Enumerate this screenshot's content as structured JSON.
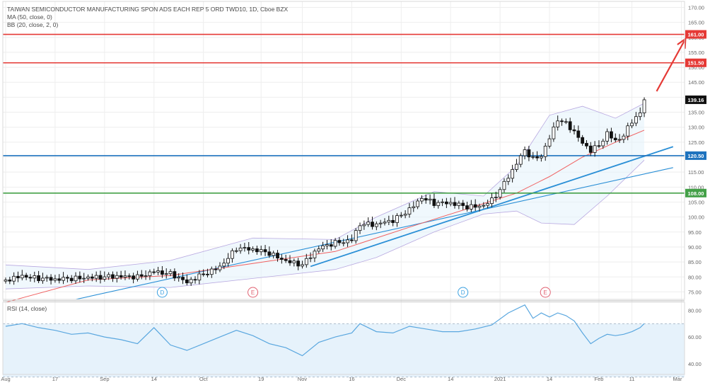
{
  "legend": {
    "title": "TAIWAN SEMICONDUCTOR MANUFACTURING SPON ADS EACH REP 5 ORD TWD10, 1D, Cboe BZX",
    "ma": "MA (50, close, 0)",
    "bb": "BB (20, close, 2, 0)"
  },
  "rsi_legend": "RSI (14, close)",
  "colors": {
    "resistance": "#e53935",
    "support_blue": "#1e73be",
    "support_green": "#43a047",
    "last_price": "#111111",
    "ma": "#f06060",
    "trend": "#2a8fd6",
    "bb": "#b8a8e0",
    "bb_fill": "#e3f2fb",
    "rsi_line": "#5aa7df",
    "rsi_fill": "#e6f2fb",
    "up_candle": "#ffffff",
    "down_candle": "#111111",
    "event_d": "#3aa0e0",
    "event_e": "#e06070",
    "arrow": "#e53935",
    "grid": "#eeeeee",
    "axis_text": "#666666"
  },
  "chart_data": [
    {
      "type": "candlestick",
      "title": "TAIWAN SEMICONDUCTOR MANUFACTURING SPON ADS EACH REP 5 ORD TWD10, 1D, Cboe BZX",
      "x_ticks": [
        "Aug",
        "17",
        "Sep",
        "14",
        "Oct",
        "19",
        "Nov",
        "16",
        "Dec",
        "14",
        "2021",
        "14",
        "Feb",
        "11",
        "Mar"
      ],
      "y_ticks": [
        "170.00",
        "165.00",
        "160.00",
        "155.00",
        "150.00",
        "145.00",
        "140.00",
        "135.00",
        "130.00",
        "125.00",
        "120.00",
        "115.00",
        "110.00",
        "105.00",
        "100.00",
        "95.00",
        "90.00",
        "85.00",
        "80.00",
        "75.00"
      ],
      "ylim": [
        72.5,
        172
      ],
      "y_grid": [
        75,
        80,
        85,
        90,
        95,
        100,
        105,
        110,
        115,
        120,
        125,
        130,
        135,
        140,
        145,
        150,
        155,
        160,
        165,
        170
      ],
      "x_range": [
        0,
        161
      ],
      "x_tick_positions": [
        0,
        12,
        24,
        36,
        48,
        62,
        72,
        84,
        96,
        108,
        120,
        132,
        144,
        152,
        164
      ],
      "price_levels": [
        {
          "label": "161.00",
          "value": 161.0,
          "role": "resistance"
        },
        {
          "label": "151.50",
          "value": 151.5,
          "role": "resistance"
        },
        {
          "label": "120.50",
          "value": 120.5,
          "role": "support_blue"
        },
        {
          "label": "108.00",
          "value": 108.0,
          "role": "support_green"
        }
      ],
      "last_price": {
        "label": "139.16",
        "value": 139.16
      },
      "events": [
        {
          "letter": "D",
          "x": 38,
          "kind": "d"
        },
        {
          "letter": "E",
          "x": 60,
          "kind": "e"
        },
        {
          "letter": "D",
          "x": 111,
          "kind": "d"
        },
        {
          "letter": "E",
          "x": 131,
          "kind": "e"
        }
      ],
      "key_closes": [
        {
          "x": 0,
          "close": 79.0
        },
        {
          "x": 4,
          "close": 81.0
        },
        {
          "x": 8,
          "close": 79.5
        },
        {
          "x": 12,
          "close": 78.5
        },
        {
          "x": 16,
          "close": 79.5
        },
        {
          "x": 20,
          "close": 80.5
        },
        {
          "x": 24,
          "close": 80.0
        },
        {
          "x": 28,
          "close": 79.5
        },
        {
          "x": 32,
          "close": 80.0
        },
        {
          "x": 36,
          "close": 82.5
        },
        {
          "x": 40,
          "close": 81.0
        },
        {
          "x": 44,
          "close": 77.5
        },
        {
          "x": 48,
          "close": 81.0
        },
        {
          "x": 52,
          "close": 84.0
        },
        {
          "x": 56,
          "close": 89.5
        },
        {
          "x": 60,
          "close": 88.5
        },
        {
          "x": 64,
          "close": 88.0
        },
        {
          "x": 68,
          "close": 86.0
        },
        {
          "x": 72,
          "close": 84.0
        },
        {
          "x": 76,
          "close": 89.0
        },
        {
          "x": 80,
          "close": 91.5
        },
        {
          "x": 84,
          "close": 93.0
        },
        {
          "x": 86,
          "close": 98.0
        },
        {
          "x": 90,
          "close": 97.0
        },
        {
          "x": 94,
          "close": 98.5
        },
        {
          "x": 98,
          "close": 103.0
        },
        {
          "x": 101,
          "close": 107.0
        },
        {
          "x": 104,
          "close": 104.5
        },
        {
          "x": 108,
          "close": 104.0
        },
        {
          "x": 112,
          "close": 103.5
        },
        {
          "x": 116,
          "close": 104.5
        },
        {
          "x": 118,
          "close": 106.0
        },
        {
          "x": 120,
          "close": 109.0
        },
        {
          "x": 123,
          "close": 115.0
        },
        {
          "x": 126,
          "close": 122.0
        },
        {
          "x": 128,
          "close": 119.5
        },
        {
          "x": 130,
          "close": 121.0
        },
        {
          "x": 132,
          "close": 127.0
        },
        {
          "x": 134,
          "close": 133.0
        },
        {
          "x": 136,
          "close": 131.0
        },
        {
          "x": 138,
          "close": 128.0
        },
        {
          "x": 140,
          "close": 124.0
        },
        {
          "x": 142,
          "close": 122.0
        },
        {
          "x": 144,
          "close": 124.0
        },
        {
          "x": 146,
          "close": 128.5
        },
        {
          "x": 148,
          "close": 126.0
        },
        {
          "x": 150,
          "close": 127.5
        },
        {
          "x": 152,
          "close": 132.0
        },
        {
          "x": 154,
          "close": 134.0
        },
        {
          "x": 155,
          "close": 139.16
        }
      ],
      "ma50": [
        {
          "x": 0,
          "y": 71.5
        },
        {
          "x": 20,
          "y": 79.0
        },
        {
          "x": 40,
          "y": 80.5
        },
        {
          "x": 60,
          "y": 84.5
        },
        {
          "x": 80,
          "y": 88.5
        },
        {
          "x": 100,
          "y": 97.5
        },
        {
          "x": 116,
          "y": 104.5
        },
        {
          "x": 124,
          "y": 108.0
        },
        {
          "x": 132,
          "y": 113.5
        },
        {
          "x": 140,
          "y": 120.0
        },
        {
          "x": 148,
          "y": 125.0
        },
        {
          "x": 155,
          "y": 129.0
        }
      ],
      "bb_upper": [
        {
          "x": 0,
          "y": 84.0
        },
        {
          "x": 20,
          "y": 82.5
        },
        {
          "x": 40,
          "y": 85.5
        },
        {
          "x": 60,
          "y": 93.0
        },
        {
          "x": 80,
          "y": 92.5
        },
        {
          "x": 90,
          "y": 100.0
        },
        {
          "x": 104,
          "y": 108.5
        },
        {
          "x": 116,
          "y": 107.0
        },
        {
          "x": 124,
          "y": 117.0
        },
        {
          "x": 132,
          "y": 134.0
        },
        {
          "x": 140,
          "y": 137.0
        },
        {
          "x": 148,
          "y": 133.0
        },
        {
          "x": 155,
          "y": 138.0
        }
      ],
      "bb_lower": [
        {
          "x": 0,
          "y": 76.0
        },
        {
          "x": 20,
          "y": 77.0
        },
        {
          "x": 40,
          "y": 76.5
        },
        {
          "x": 60,
          "y": 79.5
        },
        {
          "x": 80,
          "y": 82.5
        },
        {
          "x": 90,
          "y": 86.5
        },
        {
          "x": 104,
          "y": 95.0
        },
        {
          "x": 116,
          "y": 101.0
        },
        {
          "x": 124,
          "y": 102.0
        },
        {
          "x": 130,
          "y": 98.0
        },
        {
          "x": 138,
          "y": 97.5
        },
        {
          "x": 146,
          "y": 107.0
        },
        {
          "x": 155,
          "y": 119.0
        }
      ],
      "trend_lines": [
        {
          "from": {
            "x": 17,
            "y": 72.5
          },
          "to": {
            "x": 162,
            "y": 116.5
          }
        },
        {
          "from": {
            "x": 74,
            "y": 83.5
          },
          "to": {
            "x": 162,
            "y": 123.5
          }
        }
      ],
      "projection_arrow": {
        "from": {
          "x": 158,
          "y": 142.0
        },
        "to": {
          "x": 165,
          "y": 159.5
        }
      }
    },
    {
      "type": "line",
      "title": "RSI (14, close)",
      "y_ticks": [
        "80.00",
        "60.00",
        "40.00"
      ],
      "ylim": [
        32,
        86
      ],
      "band": [
        30,
        70
      ],
      "series": [
        {
          "values": [
            {
              "x": 0,
              "y": 68
            },
            {
              "x": 4,
              "y": 70
            },
            {
              "x": 8,
              "y": 67
            },
            {
              "x": 12,
              "y": 65
            },
            {
              "x": 16,
              "y": 62
            },
            {
              "x": 20,
              "y": 63
            },
            {
              "x": 24,
              "y": 60
            },
            {
              "x": 28,
              "y": 58
            },
            {
              "x": 32,
              "y": 55
            },
            {
              "x": 36,
              "y": 67
            },
            {
              "x": 40,
              "y": 54
            },
            {
              "x": 44,
              "y": 50
            },
            {
              "x": 48,
              "y": 55
            },
            {
              "x": 52,
              "y": 60
            },
            {
              "x": 56,
              "y": 65
            },
            {
              "x": 60,
              "y": 61
            },
            {
              "x": 64,
              "y": 55
            },
            {
              "x": 68,
              "y": 52
            },
            {
              "x": 72,
              "y": 46
            },
            {
              "x": 76,
              "y": 56
            },
            {
              "x": 80,
              "y": 60
            },
            {
              "x": 84,
              "y": 63
            },
            {
              "x": 86,
              "y": 70
            },
            {
              "x": 90,
              "y": 64
            },
            {
              "x": 94,
              "y": 63
            },
            {
              "x": 98,
              "y": 68
            },
            {
              "x": 102,
              "y": 66
            },
            {
              "x": 106,
              "y": 64
            },
            {
              "x": 110,
              "y": 64
            },
            {
              "x": 114,
              "y": 66
            },
            {
              "x": 118,
              "y": 69
            },
            {
              "x": 122,
              "y": 78
            },
            {
              "x": 126,
              "y": 84
            },
            {
              "x": 128,
              "y": 74
            },
            {
              "x": 130,
              "y": 78
            },
            {
              "x": 132,
              "y": 75
            },
            {
              "x": 134,
              "y": 78
            },
            {
              "x": 136,
              "y": 76
            },
            {
              "x": 138,
              "y": 72
            },
            {
              "x": 140,
              "y": 63
            },
            {
              "x": 142,
              "y": 55
            },
            {
              "x": 144,
              "y": 59
            },
            {
              "x": 146,
              "y": 62
            },
            {
              "x": 148,
              "y": 61
            },
            {
              "x": 150,
              "y": 62
            },
            {
              "x": 152,
              "y": 64
            },
            {
              "x": 154,
              "y": 67
            },
            {
              "x": 155,
              "y": 70
            }
          ]
        }
      ]
    }
  ]
}
